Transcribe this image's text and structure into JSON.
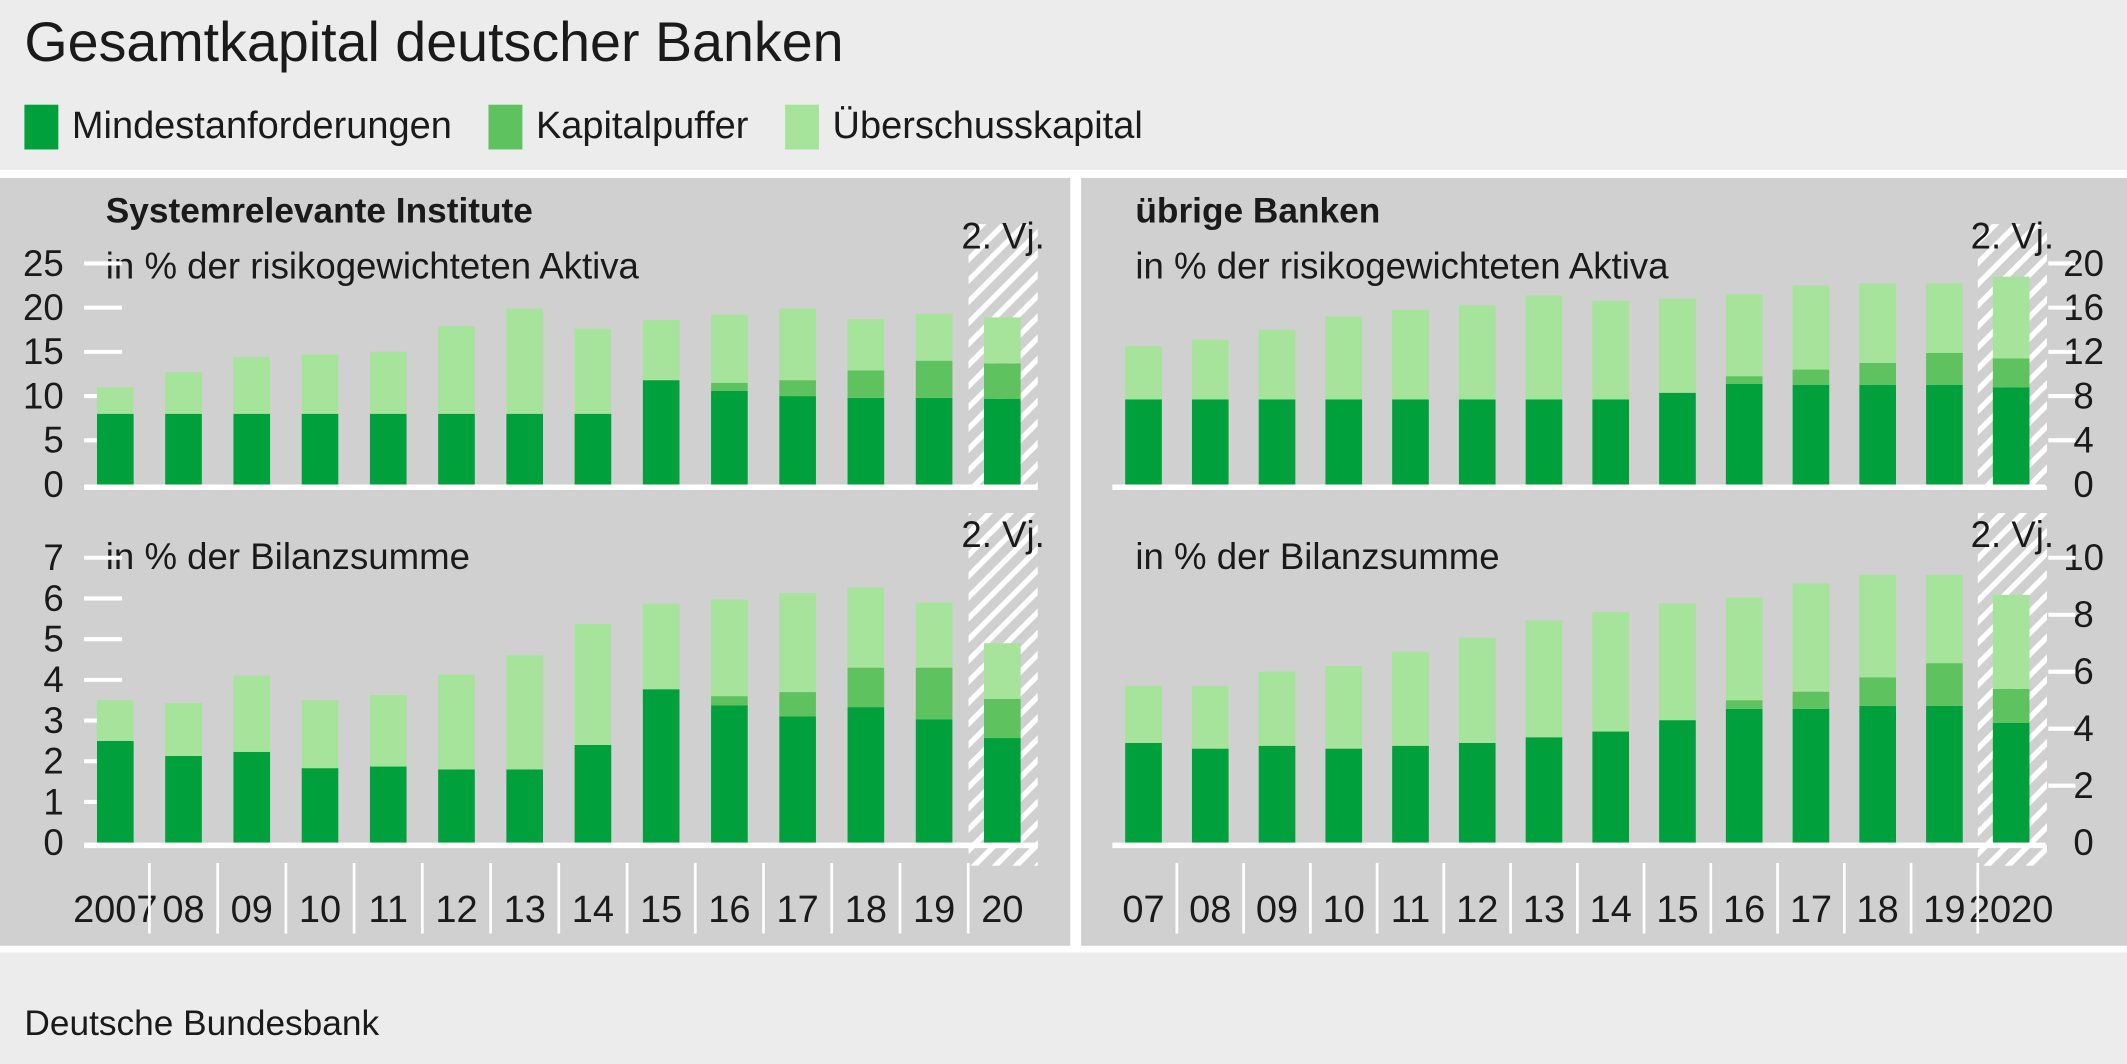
{
  "title": "Gesamtkapital deutscher Banken",
  "legend": [
    {
      "name": "Mindestanforderungen",
      "color": "#00a03c"
    },
    {
      "name": "Kapitalpuffer",
      "color": "#5ec25e"
    },
    {
      "name": "Überschusskapital",
      "color": "#a6e39b"
    }
  ],
  "source": "Deutsche Bundesbank",
  "chart_data": [
    {
      "type": "bar",
      "stacked": true,
      "title": "Systemrelevante Institute",
      "subtitle": "in % der risikogewichteten Aktiva",
      "annotation": "2. Vj.",
      "y_axis_side": "left",
      "ylim": [
        0,
        25
      ],
      "yticks": [
        0,
        5,
        10,
        15,
        20,
        25
      ],
      "series": [
        {
          "values": [
            8,
            8,
            8,
            8,
            8,
            8,
            8,
            8,
            11.8,
            10.6,
            10.0,
            9.8,
            9.8,
            9.7
          ]
        },
        {
          "values": [
            0,
            0,
            0,
            0,
            0,
            0,
            0,
            0,
            0,
            0.9,
            1.8,
            3.1,
            4.2,
            4.0
          ]
        },
        {
          "values": [
            3.0,
            4.7,
            6.4,
            6.7,
            7.0,
            9.9,
            11.9,
            9.6,
            6.8,
            7.7,
            8.1,
            5.8,
            5.3,
            5.2
          ]
        }
      ]
    },
    {
      "type": "bar",
      "stacked": true,
      "title": "übrige Banken",
      "subtitle": "in % der risikogewichteten Aktiva",
      "annotation": "2. Vj.",
      "y_axis_side": "right",
      "ylim": [
        0,
        20
      ],
      "yticks": [
        0,
        4,
        8,
        12,
        16,
        20
      ],
      "series": [
        {
          "values": [
            7.7,
            7.7,
            7.7,
            7.7,
            7.7,
            7.7,
            7.7,
            7.7,
            8.3,
            9.1,
            9.0,
            9.0,
            9.0,
            8.8
          ]
        },
        {
          "values": [
            0,
            0,
            0,
            0,
            0,
            0,
            0,
            0,
            0,
            0.7,
            1.4,
            2.0,
            2.9,
            2.6
          ]
        },
        {
          "values": [
            4.8,
            5.4,
            6.3,
            7.5,
            8.1,
            8.5,
            9.4,
            8.9,
            8.5,
            7.4,
            7.6,
            7.2,
            6.3,
            7.4
          ]
        }
      ]
    },
    {
      "type": "bar",
      "stacked": true,
      "subtitle": "in % der Bilanzsumme",
      "annotation": "2. Vj.",
      "y_axis_side": "left",
      "categories": [
        "2007",
        "08",
        "09",
        "10",
        "11",
        "12",
        "13",
        "14",
        "15",
        "16",
        "17",
        "18",
        "19",
        "20"
      ],
      "ylim": [
        0,
        7
      ],
      "yticks": [
        0,
        1,
        2,
        3,
        4,
        5,
        6,
        7
      ],
      "series": [
        {
          "values": [
            2.5,
            2.13,
            2.23,
            1.83,
            1.87,
            1.8,
            1.8,
            2.4,
            3.77,
            3.37,
            3.1,
            3.33,
            3.03,
            2.57
          ]
        },
        {
          "values": [
            0,
            0,
            0,
            0,
            0,
            0,
            0,
            0,
            0,
            0.23,
            0.6,
            0.97,
            1.27,
            0.96
          ]
        },
        {
          "values": [
            1.0,
            1.3,
            1.87,
            1.67,
            1.76,
            2.33,
            2.8,
            2.97,
            2.1,
            2.37,
            2.43,
            1.97,
            1.6,
            1.37
          ]
        }
      ]
    },
    {
      "type": "bar",
      "stacked": true,
      "subtitle": "in % der Bilanzsumme",
      "annotation": "2. Vj.",
      "y_axis_side": "right",
      "categories": [
        "07",
        "08",
        "09",
        "10",
        "11",
        "12",
        "13",
        "14",
        "15",
        "16",
        "17",
        "18",
        "19",
        "2020"
      ],
      "ylim": [
        0,
        10
      ],
      "yticks": [
        0,
        2,
        4,
        6,
        8,
        10
      ],
      "series": [
        {
          "values": [
            3.5,
            3.3,
            3.4,
            3.3,
            3.4,
            3.5,
            3.7,
            3.9,
            4.3,
            4.7,
            4.7,
            4.8,
            4.8,
            4.2
          ]
        },
        {
          "values": [
            0,
            0,
            0,
            0,
            0,
            0,
            0,
            0,
            0,
            0.3,
            0.6,
            1.0,
            1.5,
            1.2
          ]
        },
        {
          "values": [
            2.0,
            2.2,
            2.6,
            2.9,
            3.3,
            3.7,
            4.1,
            4.2,
            4.1,
            3.6,
            3.8,
            3.6,
            3.1,
            3.3
          ]
        }
      ]
    }
  ]
}
